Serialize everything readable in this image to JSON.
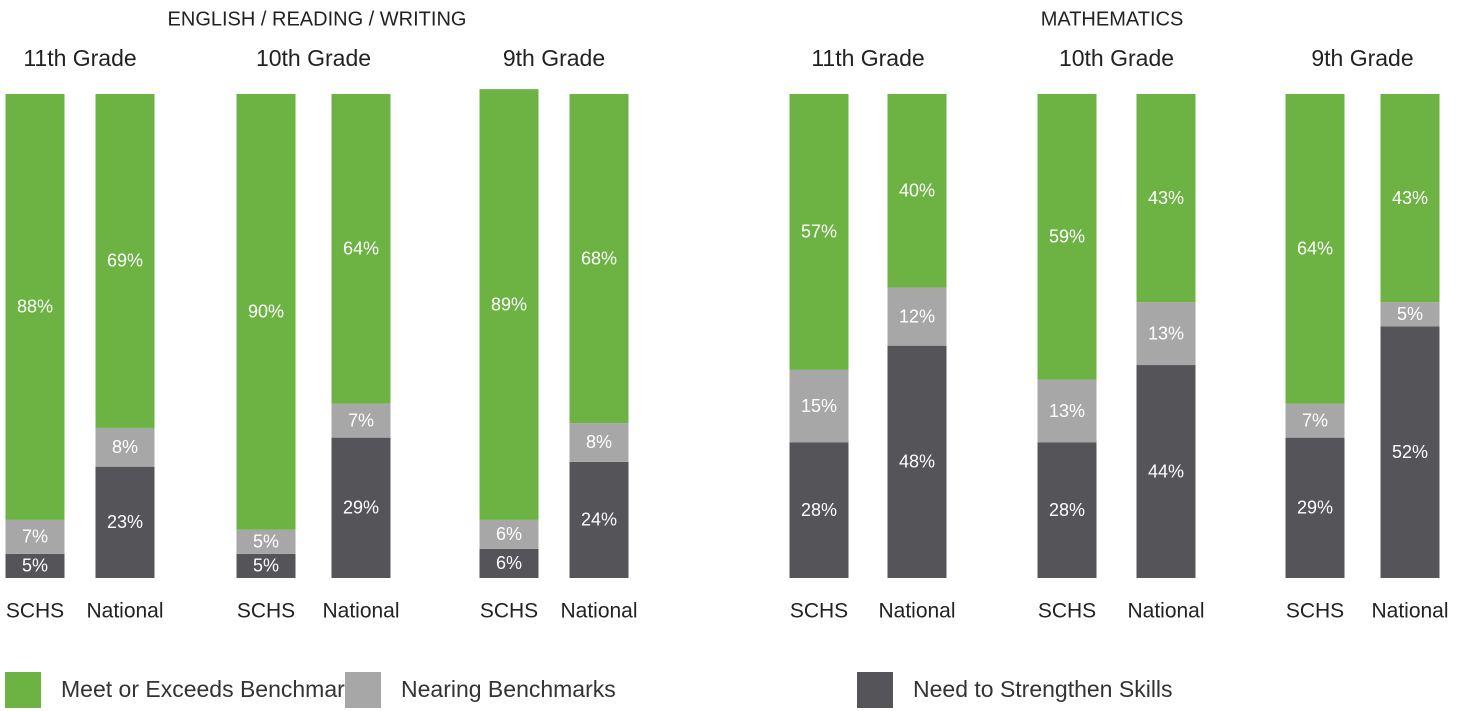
{
  "chart_data": {
    "type": "bar",
    "stacked": true,
    "ylim": [
      0,
      100
    ],
    "series": [
      {
        "name": "Meet or Exceeds Benchmarks",
        "color": "#6cb344"
      },
      {
        "name": "Nearing Benchmarks",
        "color": "#a7a7a7"
      },
      {
        "name": "Need to Strengthen Skills",
        "color": "#545459"
      }
    ],
    "panels": [
      {
        "title": "ENGLISH / READING / WRITING",
        "groups": [
          {
            "title": "11th Grade",
            "categories": [
              "SCHS",
              "National"
            ],
            "values": [
              [
                88,
                69
              ],
              [
                7,
                8
              ],
              [
                5,
                23
              ]
            ],
            "value_labels": [
              [
                "88%",
                "69%"
              ],
              [
                "7%",
                "8%"
              ],
              [
                "5%",
                "23%"
              ]
            ]
          },
          {
            "title": "10th Grade",
            "categories": [
              "SCHS",
              "National"
            ],
            "values": [
              [
                90,
                64
              ],
              [
                5,
                7
              ],
              [
                5,
                29
              ]
            ],
            "value_labels": [
              [
                "90%",
                "64%"
              ],
              [
                "5%",
                "7%"
              ],
              [
                "5%",
                "29%"
              ]
            ]
          },
          {
            "title": "9th Grade",
            "categories": [
              "SCHS",
              "National"
            ],
            "values": [
              [
                89,
                68
              ],
              [
                6,
                8
              ],
              [
                6,
                24
              ]
            ],
            "value_labels": [
              [
                "89%",
                "68%"
              ],
              [
                "6%",
                "8%"
              ],
              [
                "6%",
                "24%"
              ]
            ]
          }
        ]
      },
      {
        "title": "MATHEMATICS",
        "groups": [
          {
            "title": "11th Grade",
            "categories": [
              "SCHS",
              "National"
            ],
            "values": [
              [
                57,
                40
              ],
              [
                15,
                12
              ],
              [
                28,
                48
              ]
            ],
            "value_labels": [
              [
                "57%",
                "40%"
              ],
              [
                "15%",
                "12%"
              ],
              [
                "28%",
                "48%"
              ]
            ]
          },
          {
            "title": "10th Grade",
            "categories": [
              "SCHS",
              "National"
            ],
            "values": [
              [
                59,
                43
              ],
              [
                13,
                13
              ],
              [
                28,
                44
              ]
            ],
            "value_labels": [
              [
                "59%",
                "43%"
              ],
              [
                "13%",
                "13%"
              ],
              [
                "28%",
                "44%"
              ]
            ]
          },
          {
            "title": "9th Grade",
            "categories": [
              "SCHS",
              "National"
            ],
            "values": [
              [
                64,
                43
              ],
              [
                7,
                5
              ],
              [
                29,
                52
              ]
            ],
            "value_labels": [
              [
                "64%",
                "43%"
              ],
              [
                "7%",
                "5%"
              ],
              [
                "29%",
                "52%"
              ]
            ]
          }
        ]
      }
    ]
  }
}
